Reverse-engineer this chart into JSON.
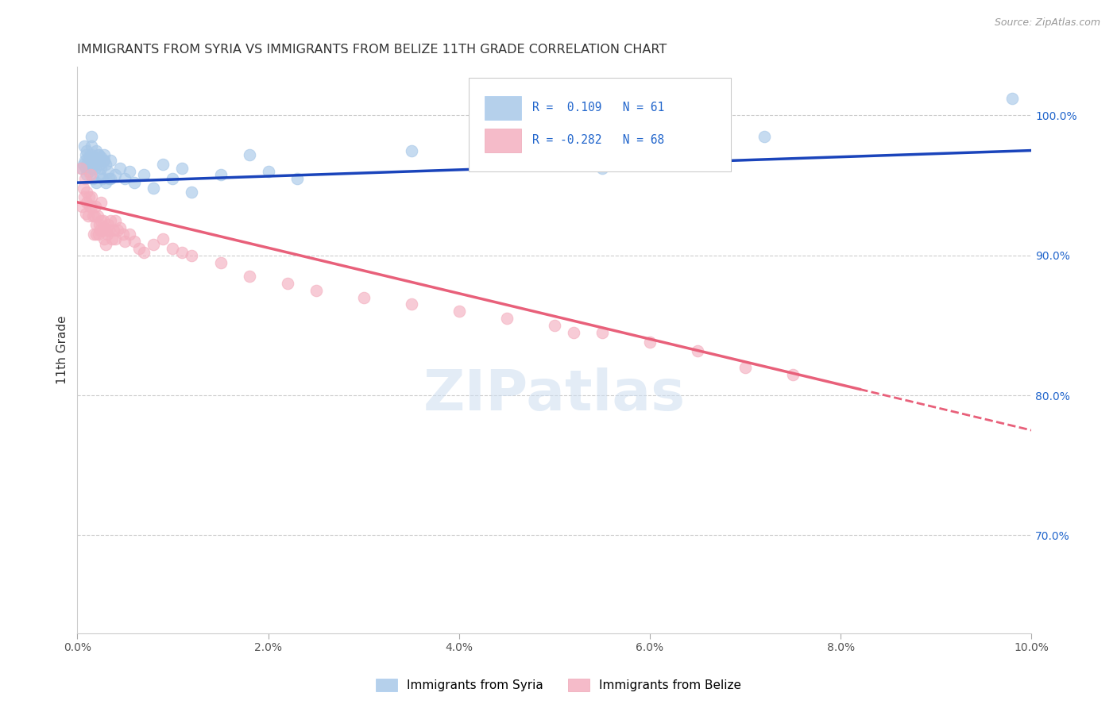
{
  "title": "IMMIGRANTS FROM SYRIA VS IMMIGRANTS FROM BELIZE 11TH GRADE CORRELATION CHART",
  "source": "Source: ZipAtlas.com",
  "ylabel": "11th Grade",
  "xlim": [
    0.0,
    10.0
  ],
  "ylim": [
    63.0,
    103.5
  ],
  "yticks": [
    70.0,
    80.0,
    90.0,
    100.0
  ],
  "ytick_labels": [
    "70.0%",
    "80.0%",
    "90.0%",
    "100.0%"
  ],
  "xticks": [
    0,
    2,
    4,
    6,
    8,
    10
  ],
  "xtick_labels": [
    "0.0%",
    "2.0%",
    "4.0%",
    "6.0%",
    "8.0%",
    "10.0%"
  ],
  "syria_R": 0.109,
  "syria_N": 61,
  "belize_R": -0.282,
  "belize_N": 68,
  "syria_color": "#a8c8e8",
  "belize_color": "#f4b0c0",
  "syria_line_color": "#1a44bb",
  "belize_line_color": "#e8607a",
  "watermark": "ZIPatlas",
  "syria_line_x0": 0.0,
  "syria_line_y0": 95.2,
  "syria_line_x1": 10.0,
  "syria_line_y1": 97.5,
  "belize_line_x0": 0.0,
  "belize_line_y0": 93.8,
  "belize_line_x1": 10.0,
  "belize_line_y1": 77.5,
  "belize_solid_end": 8.2,
  "syria_scatter_x": [
    0.05,
    0.07,
    0.08,
    0.09,
    0.1,
    0.1,
    0.1,
    0.12,
    0.13,
    0.14,
    0.15,
    0.15,
    0.16,
    0.17,
    0.18,
    0.19,
    0.2,
    0.2,
    0.21,
    0.22,
    0.23,
    0.24,
    0.25,
    0.25,
    0.26,
    0.27,
    0.28,
    0.3,
    0.3,
    0.32,
    0.35,
    0.35,
    0.4,
    0.45,
    0.5,
    0.55,
    0.6,
    0.7,
    0.8,
    0.9,
    1.0,
    1.1,
    1.2,
    1.5,
    1.8,
    2.0,
    2.3,
    3.5,
    4.5,
    5.5,
    6.2,
    7.2,
    9.8,
    0.06,
    0.09,
    0.11,
    0.15,
    0.18,
    0.22,
    0.28,
    0.33
  ],
  "syria_scatter_y": [
    96.2,
    97.8,
    96.8,
    97.2,
    97.5,
    95.8,
    96.5,
    96.0,
    97.0,
    96.3,
    97.2,
    98.5,
    95.5,
    96.8,
    97.0,
    96.2,
    97.5,
    95.2,
    96.8,
    97.2,
    96.5,
    95.8,
    97.0,
    96.2,
    95.5,
    96.8,
    97.2,
    96.5,
    95.2,
    96.0,
    96.8,
    95.5,
    95.8,
    96.2,
    95.5,
    96.0,
    95.2,
    95.8,
    94.8,
    96.5,
    95.5,
    96.2,
    94.5,
    95.8,
    97.2,
    96.0,
    95.5,
    97.5,
    96.8,
    96.2,
    97.8,
    98.5,
    101.2,
    96.5,
    96.2,
    97.0,
    97.8,
    96.5,
    97.2,
    96.8,
    95.5
  ],
  "belize_scatter_x": [
    0.04,
    0.05,
    0.06,
    0.07,
    0.08,
    0.09,
    0.1,
    0.1,
    0.11,
    0.12,
    0.13,
    0.14,
    0.15,
    0.15,
    0.16,
    0.17,
    0.18,
    0.19,
    0.2,
    0.2,
    0.21,
    0.22,
    0.23,
    0.24,
    0.25,
    0.25,
    0.26,
    0.27,
    0.28,
    0.29,
    0.3,
    0.3,
    0.31,
    0.32,
    0.33,
    0.35,
    0.36,
    0.38,
    0.4,
    0.4,
    0.42,
    0.45,
    0.48,
    0.5,
    0.55,
    0.6,
    0.65,
    0.7,
    0.8,
    0.9,
    1.0,
    1.1,
    1.2,
    1.5,
    1.8,
    2.2,
    2.5,
    3.0,
    3.5,
    4.0,
    4.5,
    5.0,
    5.5,
    6.0,
    6.5,
    7.0,
    7.5,
    5.2
  ],
  "belize_scatter_y": [
    96.2,
    93.5,
    94.8,
    94.2,
    95.5,
    93.0,
    94.5,
    93.8,
    92.8,
    94.2,
    93.5,
    95.8,
    94.2,
    93.5,
    92.8,
    91.5,
    92.8,
    93.5,
    92.2,
    91.5,
    92.8,
    91.5,
    92.2,
    91.8,
    92.5,
    93.8,
    91.8,
    92.5,
    91.2,
    92.0,
    91.8,
    90.8,
    91.5,
    92.2,
    91.8,
    92.5,
    91.2,
    91.8,
    92.5,
    91.2,
    91.8,
    92.0,
    91.5,
    91.0,
    91.5,
    91.0,
    90.5,
    90.2,
    90.8,
    91.2,
    90.5,
    90.2,
    90.0,
    89.5,
    88.5,
    88.0,
    87.5,
    87.0,
    86.5,
    86.0,
    85.5,
    85.0,
    84.5,
    83.8,
    83.2,
    82.0,
    81.5,
    84.5
  ]
}
